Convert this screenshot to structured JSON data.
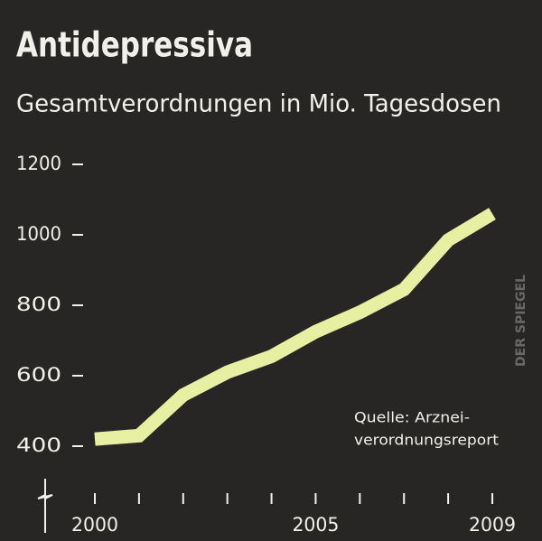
{
  "chart_data": {
    "type": "line",
    "title": "Antidepressiva",
    "subtitle": "Gesamtverordnungen in Mio. Tagesdosen",
    "x": [
      2000,
      2001,
      2002,
      2003,
      2004,
      2005,
      2006,
      2007,
      2008,
      2009
    ],
    "series": [
      {
        "name": "Antidepressiva",
        "color": "#e6efa2",
        "values": [
          420,
          430,
          545,
          610,
          655,
          725,
          780,
          845,
          985,
          1060
        ]
      }
    ],
    "xlim": [
      2000,
      2009
    ],
    "xticks": [
      2000,
      2005,
      2009
    ],
    "xminor_ticks": [
      2000,
      2001,
      2002,
      2003,
      2004,
      2005,
      2006,
      2007,
      2008,
      2009
    ],
    "ylim": [
      300,
      1200
    ],
    "yticks": [
      400,
      600,
      800,
      1000,
      1200
    ],
    "annotations": [
      "Quelle: Arznei-",
      "verordnungsreport"
    ],
    "watermark": "DER SPIEGEL"
  }
}
